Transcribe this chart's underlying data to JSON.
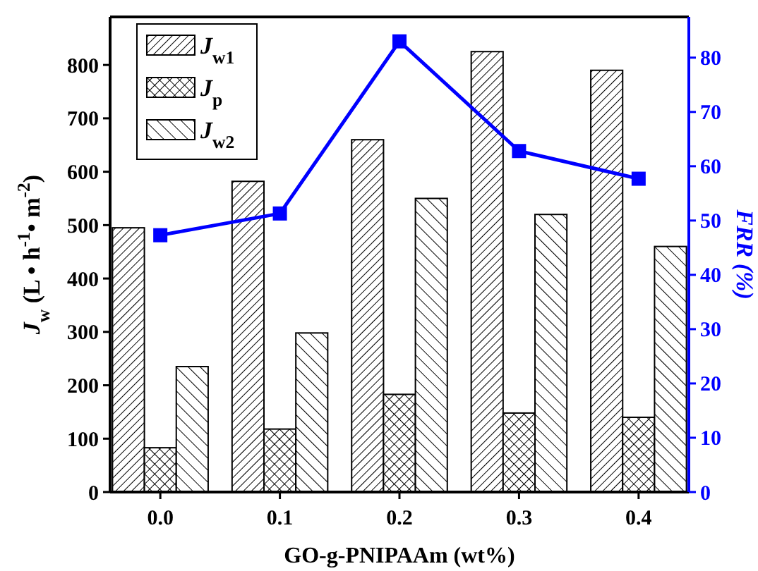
{
  "chart_data": {
    "type": "bar",
    "xlabel": "GO-g-PNIPAAm (wt%)",
    "ylabel": "J$_{w}$ (L • h$^{-1}$• m$^{-2}$)",
    "y2label": "FRR (%)",
    "categories": [
      "0.0",
      "0.1",
      "0.2",
      "0.3",
      "0.4"
    ],
    "series": [
      {
        "name": "J$_{w1}$",
        "color": "#000000",
        "values": [
          495,
          582,
          660,
          825,
          790
        ]
      },
      {
        "name": "J$_{p}$",
        "color": "#000000",
        "values": [
          83,
          118,
          183,
          148,
          140
        ]
      },
      {
        "name": "J$_{w2}$",
        "color": "#000000",
        "values": [
          235,
          298,
          550,
          520,
          460
        ]
      },
      {
        "type": "line",
        "axis": "y2",
        "color": "#0000ff",
        "values": [
          47.3,
          51.3,
          83,
          62.8,
          57.7
        ]
      }
    ],
    "ylim": [
      0,
      890
    ],
    "yticks": [
      0,
      100,
      200,
      300,
      400,
      500,
      600,
      700,
      800
    ],
    "y2lim": [
      0,
      87.5
    ],
    "y2ticks": [
      0,
      10,
      20,
      30,
      40,
      50,
      60,
      70,
      80
    ],
    "legend": "top left",
    "marker": "square",
    "grid": false
  }
}
